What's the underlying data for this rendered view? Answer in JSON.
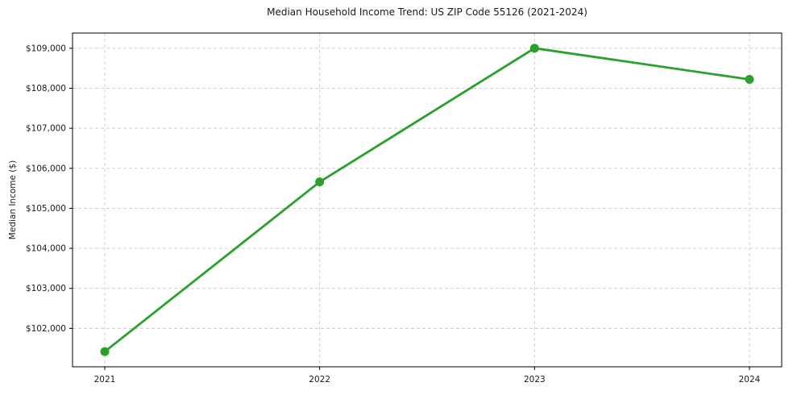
{
  "chart_data": {
    "type": "line",
    "title": "Median Household Income Trend: US ZIP Code 55126 (2021-2024)",
    "xlabel": "",
    "ylabel": "Median Income ($)",
    "x": [
      2021,
      2022,
      2023,
      2024
    ],
    "x_tick_labels": [
      "2021",
      "2022",
      "2023",
      "2024"
    ],
    "values": [
      101420,
      105660,
      109000,
      108220
    ],
    "yticks": [
      102000,
      103000,
      104000,
      105000,
      106000,
      107000,
      108000,
      109000
    ],
    "ytick_labels": [
      "$102,000",
      "$103,000",
      "$104,000",
      "$105,000",
      "$106,000",
      "$107,000",
      "$108,000",
      "$109,000"
    ],
    "xlim": [
      2020.85,
      2024.15
    ],
    "ylim": [
      101041,
      109379
    ],
    "grid": true,
    "grid_style": "dashed",
    "legend": "none",
    "line_color": "#2ca02c",
    "marker": "o",
    "grid_color": "#cccccc",
    "spine_color": "#000000",
    "text_color": "#1a1a1a"
  }
}
